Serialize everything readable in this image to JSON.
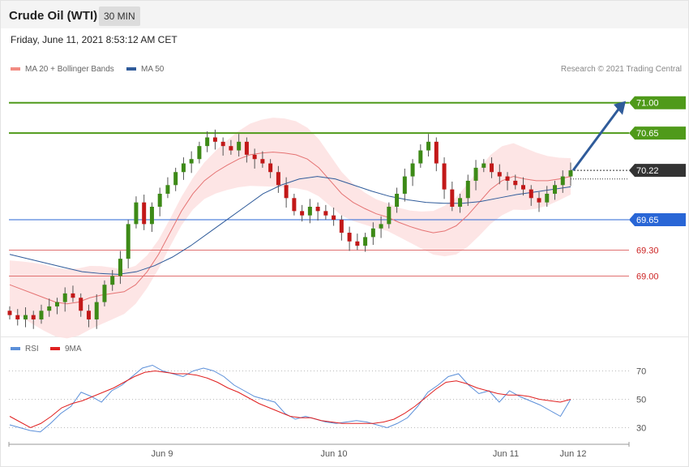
{
  "header": {
    "title": "Crude Oil (WTI)",
    "timeframe": "30 MIN"
  },
  "date": "Friday, June 11, 2021 8:53:12 AM CET",
  "legend": {
    "ma20": {
      "label": "MA 20 + Bollinger Bands",
      "color": "#f28b82"
    },
    "ma50": {
      "label": "MA 50",
      "color": "#2f5b9a"
    }
  },
  "credit": "Research © 2021 Trading Central",
  "rsi_legend": {
    "rsi": {
      "label": "RSI",
      "color": "#5b8fd9"
    },
    "ma9": {
      "label": "9MA",
      "color": "#e02020"
    }
  },
  "chart_data": [
    {
      "type": "candlestick",
      "ylim": [
        68.35,
        71.25
      ],
      "levels": [
        {
          "value": 71.0,
          "label": "71.00",
          "kind": "resistance"
        },
        {
          "value": 70.65,
          "label": "70.65",
          "kind": "resistance"
        },
        {
          "value": 70.22,
          "label": "70.22",
          "kind": "last"
        },
        {
          "value": 69.65,
          "label": "69.65",
          "kind": "pivot"
        },
        {
          "value": 69.3,
          "label": "69.30",
          "kind": "support"
        },
        {
          "value": 69.0,
          "label": "69.00",
          "kind": "support"
        }
      ],
      "x_ticks": [
        "Jun 9",
        "Jun 10",
        "Jun 11",
        "Jun 12"
      ],
      "close_series": [
        68.55,
        68.5,
        68.55,
        68.5,
        68.6,
        68.65,
        68.7,
        68.8,
        68.75,
        68.6,
        68.5,
        68.7,
        68.9,
        69.0,
        69.2,
        69.6,
        69.85,
        69.6,
        69.8,
        69.95,
        70.05,
        70.2,
        70.3,
        70.35,
        70.5,
        70.6,
        70.55,
        70.5,
        70.45,
        70.55,
        70.4,
        70.35,
        70.3,
        70.2,
        70.05,
        69.9,
        69.75,
        69.7,
        69.8,
        69.75,
        69.7,
        69.65,
        69.5,
        69.4,
        69.35,
        69.45,
        69.55,
        69.6,
        69.8,
        69.95,
        70.15,
        70.3,
        70.45,
        70.55,
        70.3,
        70.0,
        69.8,
        69.9,
        70.1,
        70.25,
        70.3,
        70.2,
        70.15,
        70.1,
        70.05,
        70.0,
        69.9,
        69.85,
        69.95,
        70.05,
        70.15,
        70.22
      ],
      "ma20_series": [
        68.9,
        68.85,
        68.8,
        68.75,
        68.7,
        68.68,
        68.7,
        68.75,
        68.78,
        68.8,
        68.82,
        68.9,
        69.05,
        69.25,
        69.5,
        69.75,
        69.95,
        70.1,
        70.2,
        70.28,
        70.35,
        70.4,
        70.42,
        70.43,
        70.42,
        70.4,
        70.35,
        70.25,
        70.1,
        69.95,
        69.85,
        69.78,
        69.72,
        69.68,
        69.62,
        69.57,
        69.53,
        69.5,
        69.52,
        69.58,
        69.7,
        69.85,
        70.0,
        70.1,
        70.15,
        70.12,
        70.1,
        70.1,
        70.12,
        70.15
      ],
      "ma50_series": [
        69.25,
        69.2,
        69.15,
        69.1,
        69.05,
        69.03,
        69.02,
        69.05,
        69.12,
        69.22,
        69.35,
        69.5,
        69.65,
        69.8,
        69.95,
        70.05,
        70.12,
        70.15,
        70.12,
        70.05,
        69.98,
        69.92,
        69.88,
        69.85,
        69.84,
        69.84,
        69.86,
        69.9,
        69.94,
        69.97,
        70.0,
        70.03
      ]
    },
    {
      "type": "line",
      "title": "RSI",
      "ylim": [
        20,
        80
      ],
      "y_ticks": [
        30,
        50,
        70
      ],
      "series": [
        {
          "name": "RSI",
          "values": [
            32,
            30,
            28,
            27,
            33,
            40,
            45,
            55,
            52,
            48,
            56,
            60,
            66,
            72,
            74,
            70,
            68,
            66,
            70,
            72,
            70,
            66,
            60,
            56,
            52,
            50,
            48,
            40,
            36,
            38,
            36,
            34,
            33,
            34,
            35,
            34,
            32,
            30,
            33,
            37,
            45,
            55,
            60,
            66,
            68,
            60,
            54,
            56,
            48,
            56,
            52,
            49,
            46,
            42,
            38,
            50
          ]
        },
        {
          "name": "9MA",
          "values": [
            38,
            34,
            30,
            33,
            38,
            44,
            47,
            49,
            52,
            55,
            58,
            62,
            66,
            69,
            70,
            69,
            68,
            68,
            67,
            65,
            62,
            58,
            55,
            51,
            47,
            44,
            41,
            38,
            37,
            37,
            35,
            34,
            33,
            33,
            33,
            33,
            34,
            36,
            40,
            45,
            51,
            57,
            62,
            63,
            61,
            58,
            56,
            54,
            53,
            53,
            52,
            50,
            49,
            48,
            50
          ]
        }
      ]
    }
  ]
}
